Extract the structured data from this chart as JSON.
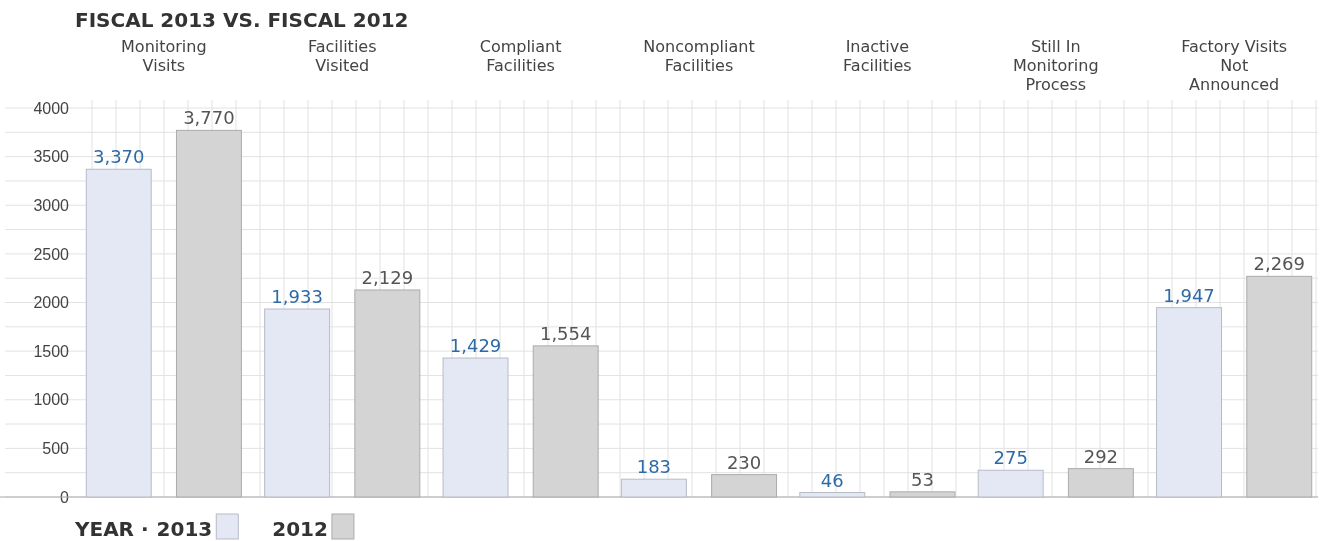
{
  "chart_data": {
    "type": "bar",
    "title": "FISCAL 2013 VS. FISCAL 2012",
    "categories": [
      "Monitoring Visits",
      "Facilities Visited",
      "Compliant Facilities",
      "Noncompliant Facilities",
      "Inactive Facilities",
      "Still In Monitoring Process",
      "Factory Visits Not Announced"
    ],
    "series": [
      {
        "name": "2013",
        "color": "#e3e8f4",
        "values": [
          3370,
          1933,
          1429,
          183,
          46,
          275,
          1947
        ],
        "value_labels": [
          "3,370",
          "1,933",
          "1,429",
          "183",
          "46",
          "275",
          "1,947"
        ]
      },
      {
        "name": "2012",
        "color": "#d4d4d4",
        "values": [
          3770,
          2129,
          1554,
          230,
          53,
          292,
          2269
        ],
        "value_labels": [
          "3,770",
          "2,129",
          "1,554",
          "230",
          "53",
          "292",
          "2,269"
        ]
      }
    ],
    "ylim": [
      0,
      4000
    ],
    "yticks": [
      0,
      500,
      1000,
      1500,
      2000,
      2500,
      3000,
      3500,
      4000
    ],
    "grid": true,
    "legend": "bottom left",
    "legend_title": "YEAR ·"
  }
}
